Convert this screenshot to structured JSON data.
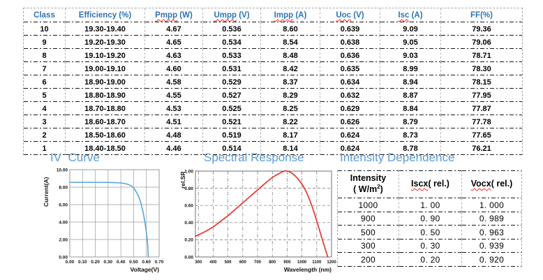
{
  "colors": {
    "header_blue": "#2e74b5",
    "title_blue": "#5b9bd5",
    "iv_curve": "#56a5da",
    "sr_curve": "#e8352b",
    "squiggle_red": "#ff2020",
    "grid_gray": "#9a9a9a"
  },
  "sections": {
    "iv_curve_title": "IV  Curve",
    "spectral_title": "Spectral Response",
    "intensity_title": "Intensity Dependence"
  },
  "main_table": {
    "headers": [
      {
        "wavy": "",
        "rest": "Class"
      },
      {
        "wavy": "",
        "rest": "Efficiency (%)"
      },
      {
        "wavy": "Pmpp",
        "rest": " (W)"
      },
      {
        "wavy": "Umpp",
        "rest": " (V)"
      },
      {
        "wavy": "Impp",
        "rest": " (A)"
      },
      {
        "wavy": "Uoc",
        "rest": " (V)"
      },
      {
        "wavy": "Isc",
        "rest": " (A)"
      },
      {
        "wavy": "",
        "rest": "FF(%)"
      }
    ],
    "rows": [
      [
        "10",
        "19.30-19.40",
        "4.67",
        "0.536",
        "8.60",
        "0.639",
        "9.09",
        "79.36"
      ],
      [
        "9",
        "19.20-19.30",
        "4.65",
        "0.534",
        "8.54",
        "0.638",
        "9.05",
        "79.06"
      ],
      [
        "8",
        "19.10-19.20",
        "4.63",
        "0.533",
        "8.48",
        "0.636",
        "9.03",
        "78.71"
      ],
      [
        "7",
        "19.00-19.10",
        "4.60",
        "0.531",
        "8.42",
        "0.635",
        "8.99",
        "78.30"
      ],
      [
        "6",
        "18.90-19.00",
        "4.58",
        "0.529",
        "8.37",
        "0.634",
        "8.94",
        "78.15"
      ],
      [
        "5",
        "18.80-18.90",
        "4.55",
        "0.527",
        "8.29",
        "0.632",
        "8.87",
        "77.95"
      ],
      [
        "4",
        "18.70-18.80",
        "4.53",
        "0.525",
        "8.25",
        "0.629",
        "8.84",
        "77.87"
      ],
      [
        "3",
        "18.60-18.70",
        "4.51",
        "0.521",
        "8.22",
        "0.626",
        "8.79",
        "77.78"
      ],
      [
        "2",
        "18.50-18.60",
        "4.48",
        "0.519",
        "8.17",
        "0.624",
        "8.73",
        "77.65"
      ],
      [
        "1",
        "18.40-18.50",
        "4.46",
        "0.514",
        "8.14",
        "0.624",
        "8.78",
        "76.21"
      ]
    ]
  },
  "intensity_table": {
    "header": {
      "col0_line1": "Intensity",
      "col0_line2_pre": "( W/m",
      "col0_sup": "2",
      "col0_line2_post": ")",
      "col1_wavy": "Iscx",
      "col1_rest": "( rel.)",
      "col2_wavy": "Vocx",
      "col2_rest": "( rel.)"
    },
    "rows": [
      [
        "1000",
        "1. 00",
        "1. 000"
      ],
      [
        "900",
        "0. 90",
        "0. 989"
      ],
      [
        "500",
        "0. 50",
        "0. 963"
      ],
      [
        "300",
        "0. 30",
        "0. 939"
      ],
      [
        "200",
        "0. 20",
        "0. 920"
      ]
    ]
  },
  "chart_data": [
    {
      "type": "line",
      "title": "IV Curve",
      "xlabel": "Voltage(V)",
      "ylabel": "Current(A)",
      "xlim": [
        0,
        0.7
      ],
      "ylim": [
        0,
        10
      ],
      "xticks": [
        "0.00",
        "0.10",
        "0.20",
        "0.30",
        "0.40",
        "0.50",
        "0.60",
        "0.70"
      ],
      "yticks": [
        "0.00",
        "2.00",
        "4.00",
        "6.00",
        "8.00",
        "10.00"
      ],
      "grid": true,
      "legend": "none",
      "color": "#56a5da",
      "series": [
        {
          "name": "iv",
          "x": [
            0,
            0.1,
            0.2,
            0.3,
            0.38,
            0.44,
            0.48,
            0.51,
            0.54,
            0.56,
            0.58,
            0.6,
            0.61,
            0.615
          ],
          "y": [
            8.55,
            8.55,
            8.55,
            8.54,
            8.5,
            8.38,
            8.15,
            7.7,
            6.9,
            6.0,
            4.7,
            2.8,
            1.5,
            0.0
          ]
        }
      ]
    },
    {
      "type": "line",
      "title": "Spectral Response",
      "xlabel": "Wavelength (nm)",
      "ylabel": "rel.SR",
      "xlim": [
        280,
        1200
      ],
      "ylim": [
        0,
        1
      ],
      "xticks": [
        "300",
        "400",
        "500",
        "600",
        "700",
        "800",
        "900",
        "1000",
        "1100",
        "1200"
      ],
      "yticks": [
        "0.00",
        "0.20",
        "0.40",
        "0.60",
        "0.80",
        "1.00"
      ],
      "grid": true,
      "legend": "none",
      "color": "#e8352b",
      "series": [
        {
          "name": "sr",
          "x": [
            280,
            350,
            400,
            450,
            500,
            550,
            600,
            650,
            700,
            750,
            800,
            850,
            880,
            910,
            940,
            980,
            1020,
            1060,
            1100,
            1140,
            1175
          ],
          "y": [
            0.24,
            0.3,
            0.35,
            0.415,
            0.48,
            0.555,
            0.63,
            0.705,
            0.78,
            0.855,
            0.925,
            0.975,
            1.0,
            0.995,
            0.965,
            0.895,
            0.79,
            0.63,
            0.42,
            0.19,
            0.0
          ]
        }
      ]
    }
  ]
}
